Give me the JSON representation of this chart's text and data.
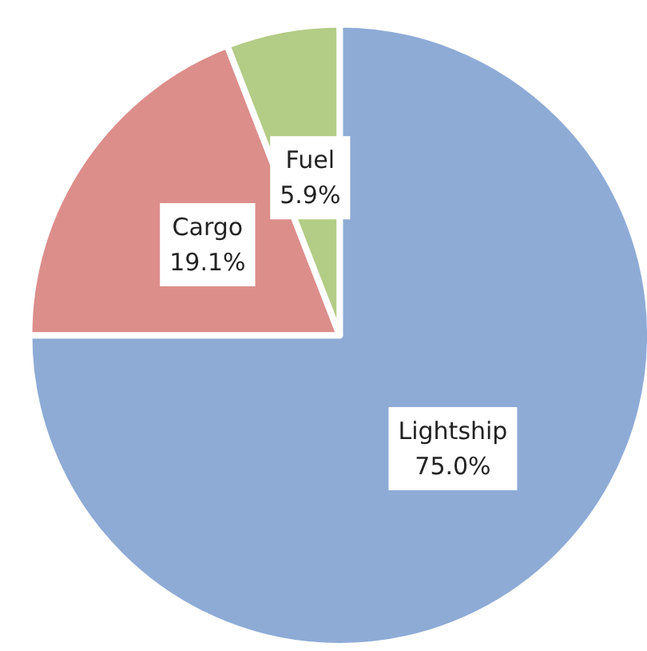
{
  "chart_data": {
    "type": "pie",
    "categories": [
      "Lightship",
      "Cargo",
      "Fuel"
    ],
    "values": [
      75.0,
      19.1,
      5.9
    ],
    "colors": [
      "#8eabd6",
      "#dc8e8b",
      "#b3cc86"
    ],
    "value_labels": [
      "75.0%",
      "19.1%",
      "5.9%"
    ],
    "legend": false
  }
}
